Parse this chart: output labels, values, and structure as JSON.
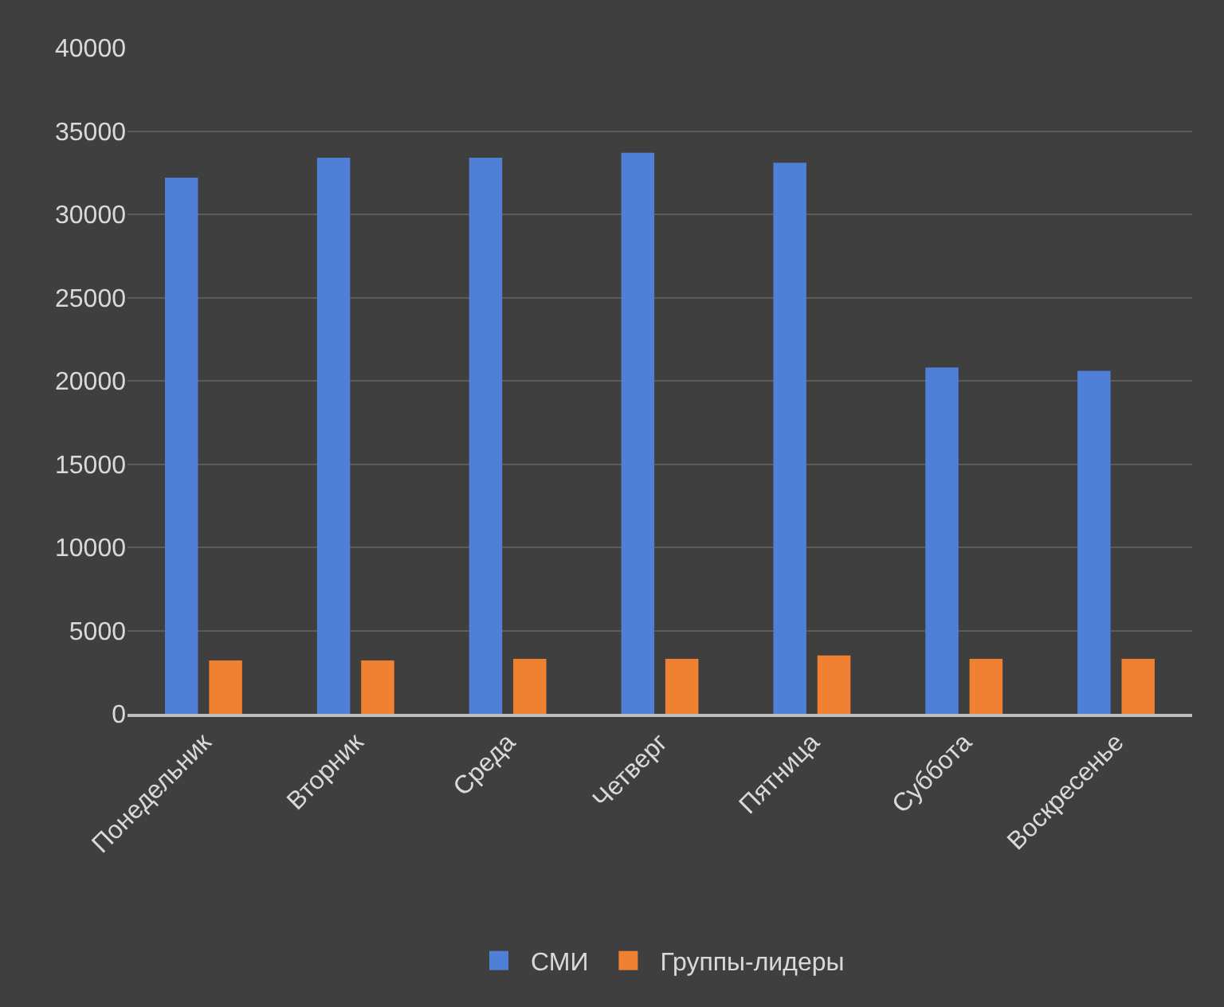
{
  "chart_data": {
    "type": "bar",
    "categories": [
      "Понедельник",
      "Вторник",
      "Среда",
      "Четверг",
      "Пятница",
      "Суббота",
      "Воскресенье"
    ],
    "series": [
      {
        "name": "СМИ",
        "color": "#4f7fd6",
        "values": [
          32200,
          33400,
          33400,
          33700,
          33100,
          20800,
          20600
        ]
      },
      {
        "name": "Группы-лидеры",
        "color": "#f08132",
        "values": [
          3200,
          3200,
          3300,
          3300,
          3500,
          3300,
          3300
        ]
      }
    ],
    "ylim": [
      0,
      40000
    ],
    "yticks": [
      0,
      5000,
      10000,
      15000,
      20000,
      25000,
      30000,
      35000,
      40000
    ],
    "grid": "y",
    "legend": "bottom"
  }
}
